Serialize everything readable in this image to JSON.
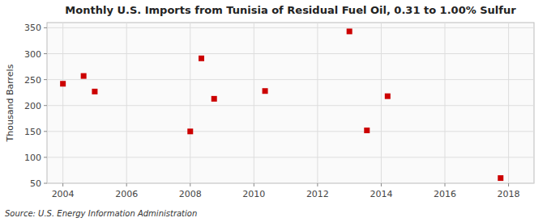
{
  "chart_data": {
    "type": "scatter",
    "title": "Monthly U.S. Imports from Tunisia of Residual Fuel Oil, 0.31 to 1.00% Sulfur",
    "ylabel": "Thousand Barrels",
    "source": "Source: U.S. Energy Information Administration",
    "x": [
      2004.0,
      2004.65,
      2005.0,
      2008.0,
      2008.35,
      2008.75,
      2010.35,
      2013.0,
      2013.55,
      2014.2,
      2017.75
    ],
    "values": [
      242,
      257,
      227,
      150,
      291,
      213,
      228,
      343,
      152,
      218,
      60
    ],
    "color": "#cc0000",
    "marker": "square",
    "xlim": [
      2003.5,
      2018.8
    ],
    "ylim": [
      50,
      360
    ],
    "xticks": [
      2004,
      2006,
      2008,
      2010,
      2012,
      2014,
      2016,
      2018
    ],
    "yticks": [
      50,
      100,
      150,
      200,
      250,
      300,
      350
    ],
    "grid": true
  }
}
